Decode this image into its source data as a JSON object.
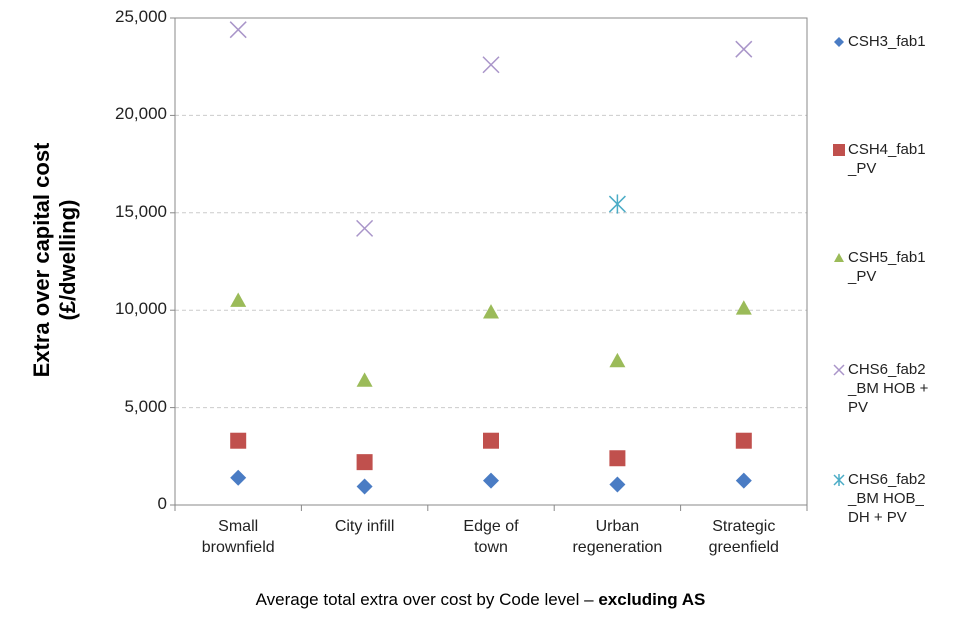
{
  "chart_data": {
    "type": "scatter",
    "y_label": "Extra over capital cost (£/dwelling)",
    "caption": "Average total extra over cost by Code level –",
    "caption_bold": "excluding AS",
    "categories": [
      "Small brownfield",
      "City infill",
      "Edge of town",
      "Urban regeneration",
      "Strategic greenfield"
    ],
    "series": [
      {
        "name": "CSH3_fab1",
        "color": "#4a7cc4",
        "marker": "diamond",
        "values": [
          1400,
          950,
          1250,
          1050,
          1250
        ]
      },
      {
        "name": "CSH4_fab1_PV",
        "color": "#c0504d",
        "marker": "square",
        "values": [
          3300,
          2200,
          3300,
          2400,
          3300
        ]
      },
      {
        "name": "CSH5_fab1_PV",
        "color": "#9bbb59",
        "marker": "triangle",
        "values": [
          10500,
          6400,
          9900,
          7400,
          10100
        ]
      },
      {
        "name": "CHS6_fab2_BM HOB + PV",
        "color": "#a995c9",
        "marker": "x",
        "values": [
          24400,
          14200,
          22600,
          null,
          23400
        ]
      },
      {
        "name": "CHS6_fab2_BM HOB_DH + PV",
        "color": "#4bacc6",
        "marker": "asterisk",
        "values": [
          null,
          null,
          null,
          15450,
          null
        ]
      }
    ],
    "ylim": [
      0,
      25000
    ],
    "yticks": [
      {
        "value": 0,
        "label": "0"
      },
      {
        "value": 5000,
        "label": "5,000"
      },
      {
        "value": 10000,
        "label": "10,000"
      },
      {
        "value": 15000,
        "label": "15,000"
      },
      {
        "value": 20000,
        "label": "20,000"
      },
      {
        "value": 25000,
        "label": "25,000"
      }
    ],
    "grid": true,
    "legend": "right"
  }
}
